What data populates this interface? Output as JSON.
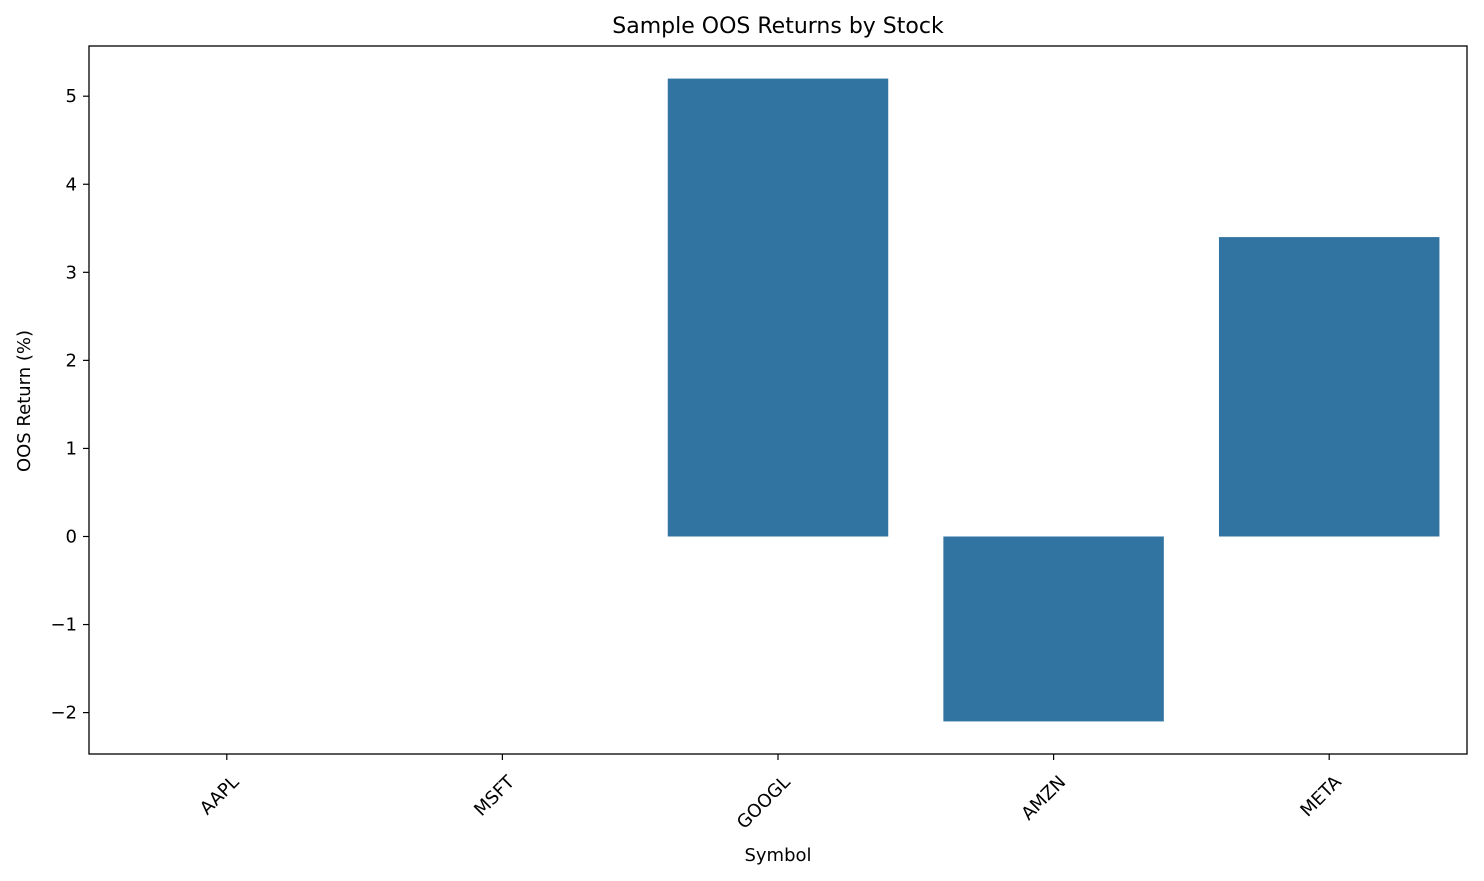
{
  "chart_data": {
    "type": "bar",
    "title": "Sample OOS Returns by Stock",
    "xlabel": "Symbol",
    "ylabel": "OOS Return (%)",
    "categories": [
      "AAPL",
      "MSFT",
      "GOOGL",
      "AMZN",
      "META"
    ],
    "values": [
      0,
      0,
      5.2,
      -2.1,
      3.4
    ],
    "ylim": [
      -2.47,
      5.57
    ],
    "yticks": [
      -2,
      -1,
      0,
      1,
      2,
      3,
      4,
      5
    ],
    "ytick_labels": [
      "−2",
      "−1",
      "0",
      "1",
      "2",
      "3",
      "4",
      "5"
    ],
    "bar_color": "#3274a1",
    "grid": false,
    "xtick_rotation_deg": 45
  }
}
